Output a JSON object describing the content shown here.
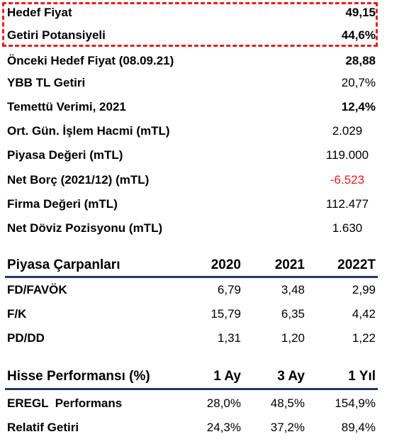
{
  "summary": {
    "rows": [
      {
        "label": "Hedef Fiyat",
        "value": "49,15"
      },
      {
        "label": "Getiri Potansiyeli",
        "value": "44,6%"
      },
      {
        "label": "Önceki Hedef Fiyat (08.09.21)",
        "value": "28,88"
      },
      {
        "label": "YBB TL Getiri",
        "value": "20,7%"
      },
      {
        "label": "Temettü Verimi, 2021",
        "value": "12,4%"
      },
      {
        "label": "Ort. Gün. İşlem Hacmi (mTL)",
        "value": "2.029"
      },
      {
        "label": "Piyasa Değeri (mTL)",
        "value": "119.000"
      },
      {
        "label": "Net Borç (2021/12) (mTL)",
        "value": "-6.523"
      },
      {
        "label": "Firma Değeri (mTL)",
        "value": "112.477"
      },
      {
        "label": "Net Döviz Pozisyonu (mTL)",
        "value": "1.630"
      }
    ]
  },
  "multiples": {
    "header": [
      "Piyasa Çarpanları",
      "2020",
      "2021",
      "2022T"
    ],
    "rows": [
      [
        "FD/FAVÖK",
        "6,79",
        "3,48",
        "2,99"
      ],
      [
        "F/K",
        "15,79",
        "6,35",
        "4,42"
      ],
      [
        "PD/DD",
        "1,31",
        "1,20",
        "1,22"
      ]
    ]
  },
  "performance": {
    "header": [
      "Hisse Performansı (%)",
      "1 Ay",
      "3 Ay",
      "1 Yıl"
    ],
    "rows": [
      [
        "EREGL  Performans",
        "28,0%",
        "48,5%",
        "154,9%"
      ],
      [
        "Relatif Getiri",
        "24,3%",
        "37,2%",
        "89,4%"
      ]
    ]
  }
}
